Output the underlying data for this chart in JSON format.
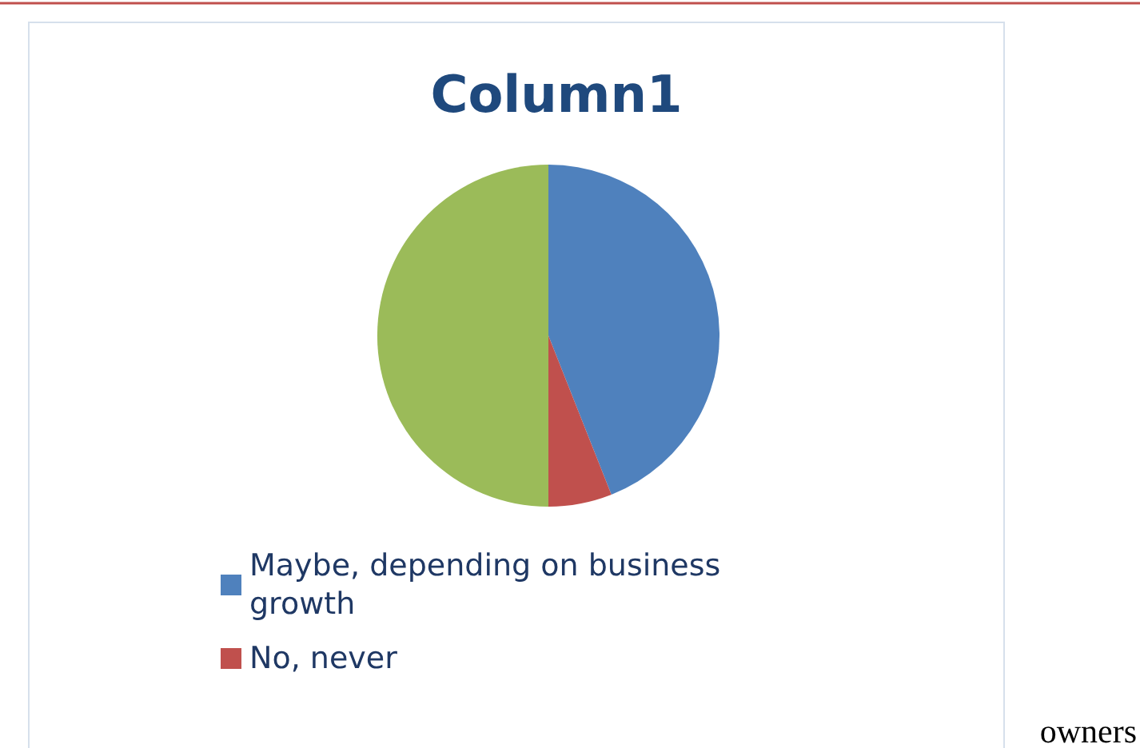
{
  "chart_data": {
    "type": "pie",
    "title": "Column1",
    "categories": [
      "Maybe, depending on business growth",
      "No, never",
      null
    ],
    "values": [
      44,
      6,
      50
    ],
    "colors": [
      "#4f81bd",
      "#c0504d",
      "#9bbb59"
    ],
    "legend": "bottom left",
    "annotations": [
      "owners"
    ]
  }
}
